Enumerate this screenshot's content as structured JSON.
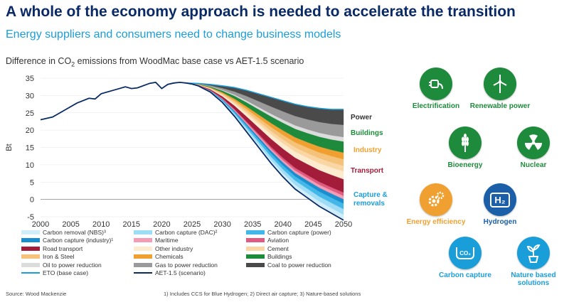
{
  "header": {
    "title": "A whole of the economy approach is needed to accelerate the transition",
    "subtitle": "Energy suppliers and consumers need to change business models"
  },
  "chart_title_prefix": "Difference in CO",
  "chart_title_sub": "2",
  "chart_title_suffix": " emissions from WoodMac base case vs AET-1.5 scenario",
  "chart_data": {
    "type": "area",
    "ylabel": "Bt",
    "xlim": [
      2000,
      2050
    ],
    "ylim": [
      -5,
      35
    ],
    "x_ticks": [
      2000,
      2005,
      2010,
      2015,
      2020,
      2025,
      2030,
      2035,
      2040,
      2045,
      2050
    ],
    "y_ticks": [
      -5,
      0,
      5,
      10,
      15,
      20,
      25,
      30,
      35
    ],
    "x": [
      2000,
      2002,
      2004,
      2006,
      2008,
      2009,
      2010,
      2012,
      2014,
      2015,
      2016,
      2018,
      2019,
      2020,
      2021,
      2022,
      2023,
      2024,
      2025,
      2026,
      2028,
      2030,
      2032,
      2034,
      2036,
      2038,
      2040,
      2042,
      2044,
      2046,
      2048,
      2050
    ],
    "aet": [
      23,
      23.8,
      25.8,
      27.8,
      29.2,
      29,
      30.5,
      31.5,
      32.5,
      32,
      32.2,
      33.5,
      33.8,
      32,
      33.2,
      33.6,
      33.8,
      33.6,
      33.3,
      32.8,
      31,
      28,
      24,
      19.5,
      15,
      10.5,
      6.5,
      3,
      0.5,
      -2,
      -4,
      -6
    ],
    "eto_x": [
      2024,
      2026,
      2028,
      2030,
      2032,
      2034,
      2036,
      2038,
      2040,
      2042,
      2044,
      2046,
      2048,
      2050
    ],
    "eto": [
      33.6,
      33.5,
      33.2,
      32.8,
      32.3,
      31.5,
      30.5,
      29.5,
      28.5,
      27.5,
      26.8,
      26.3,
      26,
      26
    ],
    "stack_order": [
      "Carbon removal (NBS)³",
      "Carbon capture (DAC)²",
      "Carbon capture (power)",
      "Carbon capture (industry)¹",
      "Maritime",
      "Aviation",
      "Road transport",
      "Other industry",
      "Cement",
      "Iron & Steel",
      "Chemicals",
      "Buildings",
      "Oil to power reduction",
      "Gas to power reduction",
      "Coal to power reduction"
    ],
    "stack_shares": [
      0.05,
      0.05,
      0.05,
      0.04,
      0.03,
      0.03,
      0.12,
      0.07,
      0.05,
      0.06,
      0.06,
      0.1,
      0.04,
      0.11,
      0.14
    ],
    "series_colors": [
      "#cfeefa",
      "#9fdcf5",
      "#43b8e8",
      "#1a8fd0",
      "#f49bb5",
      "#e05b80",
      "#a31d3b",
      "#fdebd0",
      "#f9d6a4",
      "#f5c27a",
      "#f0a030",
      "#1e8a3c",
      "#dcdcdc",
      "#9a9a9a",
      "#4a4a4a"
    ],
    "aet_color": "#0a2a66",
    "eto_color": "#1a9ed9",
    "sector_labels": [
      {
        "text": "Power",
        "color": "#333333"
      },
      {
        "text": "Buildings",
        "color": "#1e8a3c"
      },
      {
        "text": "Industry",
        "color": "#f0a030"
      },
      {
        "text": "Transport",
        "color": "#a31d3b"
      },
      {
        "text": "Capture &",
        "color": "#1a9ed9"
      },
      {
        "text": "removals",
        "color": "#1a9ed9"
      }
    ],
    "legend": [
      {
        "text": "Carbon removal (NBS)³",
        "color": "#cfeefa",
        "kind": "area"
      },
      {
        "text": "Carbon capture (DAC)²",
        "color": "#9fdcf5",
        "kind": "area"
      },
      {
        "text": "Carbon capture (power)",
        "color": "#43b8e8",
        "kind": "area"
      },
      {
        "text": "Carbon capture (industry)¹",
        "color": "#1a8fd0",
        "kind": "area"
      },
      {
        "text": "Maritime",
        "color": "#f49bb5",
        "kind": "area"
      },
      {
        "text": "Aviation",
        "color": "#e05b80",
        "kind": "area"
      },
      {
        "text": "Road transport",
        "color": "#a31d3b",
        "kind": "area"
      },
      {
        "text": "Other industry",
        "color": "#fdebd0",
        "kind": "area"
      },
      {
        "text": "Cement",
        "color": "#f9d6a4",
        "kind": "area"
      },
      {
        "text": "Iron & Steel",
        "color": "#f5c27a",
        "kind": "area"
      },
      {
        "text": "Chemicals",
        "color": "#f0a030",
        "kind": "area"
      },
      {
        "text": "Buildings",
        "color": "#1e8a3c",
        "kind": "area"
      },
      {
        "text": "Oil to power reduction",
        "color": "#dcdcdc",
        "kind": "area"
      },
      {
        "text": "Gas to power reduction",
        "color": "#9a9a9a",
        "kind": "area"
      },
      {
        "text": "Coal to power reduction",
        "color": "#4a4a4a",
        "kind": "area"
      },
      {
        "text": "ETO (base case)",
        "color": "#1a9ed9",
        "kind": "line"
      },
      {
        "text": "AET-1.5 (scenario)",
        "color": "#0a2a66",
        "kind": "line"
      }
    ]
  },
  "source": "Source: Wood Mackenzie",
  "footnote": "1) Includes CCS for Blue Hydrogen; 2) Direct air capture; 3) Nature-based solutions",
  "technologies": [
    {
      "label": "Electrification",
      "color": "#1e8a3c",
      "text_color": "#1e8a3c",
      "icon": "plug-icon"
    },
    {
      "label": "Renewable power",
      "color": "#1e8a3c",
      "text_color": "#1e8a3c",
      "icon": "wind-turbine-icon"
    },
    {
      "label": "Bioenergy",
      "color": "#1e8a3c",
      "text_color": "#1e8a3c",
      "icon": "wheat-icon"
    },
    {
      "label": "Nuclear",
      "color": "#1e8a3c",
      "text_color": "#1e8a3c",
      "icon": "radiation-icon"
    },
    {
      "label": "Energy efficiency",
      "color": "#f0a030",
      "text_color": "#f0a030",
      "icon": "gears-icon"
    },
    {
      "label": "Hydrogen",
      "color": "#1a5fa8",
      "text_color": "#1a5fa8",
      "icon": "h2-icon",
      "icon_text": "H₂"
    },
    {
      "label": "Carbon capture",
      "color": "#1a9ed9",
      "text_color": "#1a9ed9",
      "icon": "co2-capture-icon",
      "icon_text": "CO₂"
    },
    {
      "label": "Nature based solutions",
      "color": "#1a9ed9",
      "text_color": "#1a9ed9",
      "icon": "plant-icon"
    }
  ]
}
